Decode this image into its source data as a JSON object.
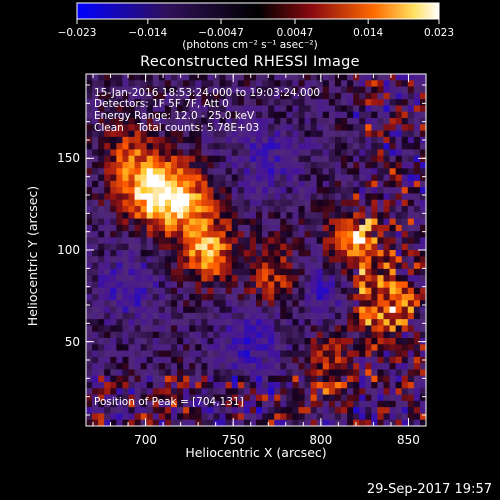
{
  "colorbar": {
    "ticks": [
      "−0.023",
      "−0.014",
      "−0.0047",
      "0.0047",
      "0.014",
      "0.023"
    ],
    "tick_values": [
      -0.023,
      -0.014,
      -0.0047,
      0.0047,
      0.014,
      0.023
    ],
    "units": "(photons cm⁻² s⁻¹ asec⁻²)",
    "colors": [
      "#0000ff",
      "#30105a",
      "#000000",
      "#8a0a10",
      "#ff6a00",
      "#ffffff"
    ]
  },
  "chart_data": {
    "type": "heatmap",
    "title": "Reconstructed RHESSI Image",
    "xlabel": "Heliocentric X (arcsec)",
    "ylabel": "Heliocentric Y (arcsec)",
    "xlim": [
      666,
      860
    ],
    "ylim": [
      4,
      196
    ],
    "x_ticks": [
      700,
      750,
      800,
      850
    ],
    "y_ticks": [
      50,
      100,
      150
    ],
    "value_range": [
      -0.023,
      0.023
    ],
    "colormap": "blue-purple-black-red-orange-white",
    "hot_regions": [
      {
        "x": 722,
        "y": 128,
        "intensity": 0.018
      },
      {
        "x": 735,
        "y": 100,
        "intensity": 0.02
      },
      {
        "x": 704,
        "y": 131,
        "intensity": 0.023
      },
      {
        "x": 775,
        "y": 85,
        "intensity": 0.014
      },
      {
        "x": 818,
        "y": 103,
        "intensity": 0.021
      },
      {
        "x": 835,
        "y": 70,
        "intensity": 0.016
      },
      {
        "x": 690,
        "y": 150,
        "intensity": 0.012
      },
      {
        "x": 805,
        "y": 40,
        "intensity": 0.01
      }
    ],
    "cold_regions": [
      {
        "x": 760,
        "y": 50,
        "intensity": -0.01
      },
      {
        "x": 690,
        "y": 80,
        "intensity": -0.009
      },
      {
        "x": 800,
        "y": 80,
        "intensity": -0.011
      },
      {
        "x": 770,
        "y": 150,
        "intensity": -0.008
      }
    ]
  },
  "info_lines": [
    "15-Jan-2016 18:53:24.000 to 19:03:24.000",
    "Detectors: 1F 5F 7F, Att 0",
    "Energy Range: 12.0 - 25.0 keV",
    "Clean    Total counts: 5.78E+03"
  ],
  "peak_text": "Position of Peak = [704,131]",
  "timestamp": "29-Sep-2017 19:57"
}
